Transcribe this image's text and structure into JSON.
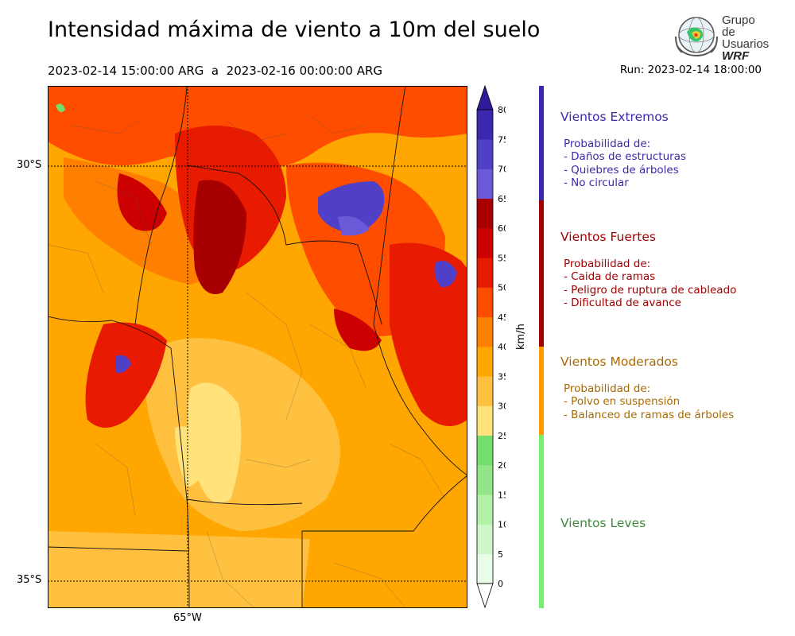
{
  "title": "Intensidad máxima de viento a 10m del suelo",
  "period": "2023-02-14 15:00:00 ARG  a  2023-02-16 00:00:00 ARG",
  "run": "Run: 2023-02-14 18:00:00",
  "logo": {
    "line1": "Grupo de",
    "line2": "Usuarios",
    "line3": "WRF"
  },
  "map": {
    "lat_labels": [
      "30°S",
      "35°S"
    ],
    "lon_labels": [
      "65°W"
    ]
  },
  "colorbar": {
    "unit": "km/h",
    "ticks": [
      0,
      5,
      10,
      15,
      20,
      25,
      30,
      35,
      40,
      45,
      50,
      55,
      60,
      65,
      70,
      75,
      80
    ],
    "colors": [
      "#e8fce8",
      "#cdf7c8",
      "#b2f0a8",
      "#93e688",
      "#74dd6c",
      "#ffe27a",
      "#ffc040",
      "#ffa600",
      "#ff8000",
      "#ff4d00",
      "#e81a00",
      "#cc0000",
      "#a80000",
      "#6a5ad8",
      "#5040c8",
      "#3a28b0"
    ],
    "colors_note": "bin colors from 0-5 up to 75-80",
    "over_color": "#2e1a9a",
    "under_color": "#ffffff"
  },
  "categories": [
    {
      "name": "Vientos Extremos",
      "color": "#3a2aaa",
      "title": "Probabilidad de:",
      "items": [
        "- Daños de estructuras",
        "- Quiebres de árboles",
        "- No circular"
      ]
    },
    {
      "name": "Vientos Fuertes",
      "color": "#a00000",
      "title": "Probabilidad de:",
      "items": [
        "- Caida de ramas",
        "- Peligro de ruptura de cableado",
        "- Dificultad de avance"
      ]
    },
    {
      "name": "Vientos Moderados",
      "color": "#a86a00",
      "title": "Probabilidad de:",
      "items": [
        "- Polvo en suspensión",
        "- Balanceo de ramas de árboles"
      ]
    },
    {
      "name": "Vientos Leves",
      "color": "#3a8a3a",
      "title": "",
      "items": []
    }
  ]
}
